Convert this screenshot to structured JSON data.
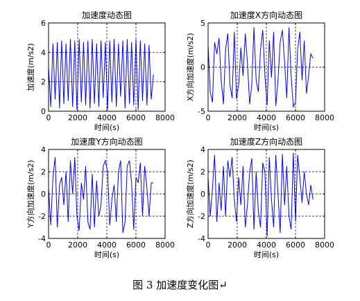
{
  "caption": "图 3  加速度变化图↵",
  "colors": {
    "series": "#0000ff",
    "axes": "#000000",
    "grid": "#000000"
  },
  "chart_data": [
    {
      "type": "line",
      "title": "加速度动态图",
      "xlabel": "时间(s)",
      "ylabel": "加速度(m/s2)",
      "xlim": [
        0,
        8000
      ],
      "ylim": [
        0,
        6
      ],
      "xticks": [
        0,
        2000,
        4000,
        6000,
        8000
      ],
      "yticks": [
        0,
        2,
        4,
        6
      ],
      "grid_x": [
        2000,
        4000,
        6000
      ],
      "grid_y": [
        2,
        4
      ],
      "series": [
        {
          "x": [
            0,
            150,
            300,
            450,
            600,
            750,
            900,
            1050,
            1200,
            1350,
            1500,
            1650,
            1800,
            1950,
            2100,
            2250,
            2400,
            2550,
            2700,
            2850,
            3000,
            3150,
            3300,
            3450,
            3600,
            3750,
            3900,
            4050,
            4200,
            4350,
            4500,
            4650,
            4800,
            4950,
            5100,
            5250,
            5400,
            5550,
            5700,
            5850,
            6000,
            6150,
            6300,
            6450,
            6600,
            6750,
            6900,
            7050,
            7200
          ],
          "y": [
            3.0,
            0.3,
            4.6,
            0.8,
            4.7,
            0.2,
            4.8,
            0.5,
            4.6,
            0.7,
            4.9,
            0.3,
            4.8,
            0.1,
            4.9,
            0.6,
            4.7,
            0.4,
            4.8,
            0.2,
            4.9,
            0.5,
            4.6,
            0.3,
            4.8,
            0.9,
            4.7,
            0.1,
            4.8,
            0.6,
            4.9,
            0.3,
            4.6,
            1.0,
            4.8,
            0.2,
            4.9,
            0.5,
            4.7,
            0.4,
            4.9,
            0.1,
            4.8,
            0.7,
            4.6,
            0.4,
            4.5,
            0.8,
            2.5
          ]
        }
      ]
    },
    {
      "type": "line",
      "title": "加速度X方向动态图",
      "xlabel": "时间(s)",
      "ylabel": "X方向加速度(m/s2)",
      "xlim": [
        0,
        8000
      ],
      "ylim": [
        -5,
        5
      ],
      "xticks": [
        0,
        2000,
        4000,
        6000,
        8000
      ],
      "yticks": [
        -5,
        0,
        5
      ],
      "grid_x": [
        2000,
        4000,
        6000
      ],
      "grid_y": [
        0
      ],
      "series": [
        {
          "x": [
            0,
            150,
            300,
            450,
            600,
            750,
            900,
            1050,
            1200,
            1350,
            1500,
            1650,
            1800,
            1950,
            2100,
            2250,
            2400,
            2550,
            2700,
            2850,
            3000,
            3150,
            3300,
            3450,
            3600,
            3750,
            3900,
            4050,
            4200,
            4350,
            4500,
            4650,
            4800,
            4950,
            5100,
            5250,
            5400,
            5550,
            5700,
            5850,
            6000,
            6150,
            6300,
            6450,
            6600,
            6750,
            6900,
            7050,
            7200
          ],
          "y": [
            2.5,
            -2.8,
            -4.0,
            2.8,
            1.5,
            3.3,
            -1.5,
            -4.2,
            2.0,
            3.8,
            -2.0,
            -3.5,
            4.0,
            -3.6,
            -2.0,
            2.2,
            -1.0,
            3.8,
            0.5,
            -4.2,
            -2.0,
            4.5,
            -1.5,
            -2.8,
            2.0,
            4.2,
            -1.0,
            -4.3,
            3.0,
            -1.2,
            4.0,
            -4.4,
            -1.5,
            2.8,
            4.2,
            0.5,
            -3.5,
            4.5,
            -1.0,
            -4.5,
            -4.0,
            2.0,
            4.0,
            -1.5,
            3.0,
            -3.0,
            -1.0,
            1.5,
            1.0
          ]
        }
      ]
    },
    {
      "type": "line",
      "title": "加速度Y方向动态图",
      "xlabel": "时间(s)",
      "ylabel": "Y方向加速度(m/s2)",
      "xlim": [
        0,
        8000
      ],
      "ylim": [
        -4,
        4
      ],
      "xticks": [
        0,
        2000,
        4000,
        6000,
        8000
      ],
      "yticks": [
        -4,
        -2,
        0,
        2,
        4
      ],
      "grid_x": [
        2000,
        4000,
        6000
      ],
      "grid_y": [
        -2,
        0,
        2
      ],
      "series": [
        {
          "x": [
            0,
            150,
            300,
            450,
            600,
            750,
            900,
            1050,
            1200,
            1350,
            1500,
            1650,
            1800,
            1950,
            2100,
            2250,
            2400,
            2550,
            2700,
            2850,
            3000,
            3150,
            3300,
            3450,
            3600,
            3750,
            3900,
            4050,
            4200,
            4350,
            4500,
            4650,
            4800,
            4950,
            5100,
            5250,
            5400,
            5550,
            5700,
            5850,
            6000,
            6150,
            6300,
            6450,
            6600,
            6750,
            6900,
            7050,
            7200
          ],
          "y": [
            0.5,
            -2.8,
            1.5,
            3.3,
            -3.0,
            0.8,
            1.5,
            -1.0,
            2.0,
            -2.5,
            3.0,
            0.0,
            3.3,
            -2.0,
            -3.3,
            1.0,
            -0.5,
            2.5,
            -2.5,
            -3.2,
            1.8,
            -3.0,
            1.2,
            -2.0,
            -1.0,
            2.5,
            3.0,
            2.0,
            -2.8,
            -0.5,
            0.8,
            -2.5,
            2.0,
            3.0,
            -3.5,
            -2.5,
            2.5,
            3.0,
            1.0,
            -3.2,
            1.5,
            1.0,
            2.8,
            -2.0,
            2.5,
            0.5,
            -2.0,
            1.0,
            1.0
          ]
        }
      ]
    },
    {
      "type": "line",
      "title": "加速度Z方向动态图",
      "xlabel": "时间(s)",
      "ylabel": "Z方向加速度(m/s2)",
      "xlim": [
        0,
        8000
      ],
      "ylim": [
        -4,
        4
      ],
      "xticks": [
        0,
        2000,
        4000,
        6000,
        8000
      ],
      "yticks": [
        -4,
        -2,
        0,
        2,
        4
      ],
      "grid_x": [
        2000,
        4000,
        6000
      ],
      "grid_y": [
        -2,
        0,
        2
      ],
      "series": [
        {
          "x": [
            0,
            150,
            300,
            450,
            600,
            750,
            900,
            1050,
            1200,
            1350,
            1500,
            1650,
            1800,
            1950,
            2100,
            2250,
            2400,
            2550,
            2700,
            2850,
            3000,
            3150,
            3300,
            3450,
            3600,
            3750,
            3900,
            4050,
            4200,
            4350,
            4500,
            4650,
            4800,
            4950,
            5100,
            5250,
            5400,
            5550,
            5700,
            5850,
            6000,
            6150,
            6300,
            6450,
            6600,
            6750,
            6900,
            7050,
            7200
          ],
          "y": [
            1.5,
            -2.0,
            0.5,
            3.5,
            -2.5,
            1.0,
            -1.5,
            2.5,
            -2.0,
            3.0,
            1.5,
            3.3,
            -0.5,
            -2.5,
            1.5,
            -1.0,
            2.5,
            -3.0,
            -1.0,
            2.0,
            3.2,
            -3.2,
            2.0,
            -1.5,
            -3.0,
            2.8,
            2.0,
            -3.8,
            3.3,
            -0.5,
            -3.0,
            3.5,
            0.0,
            -3.5,
            3.6,
            -1.0,
            2.5,
            -2.0,
            -3.2,
            3.7,
            -2.5,
            3.5,
            1.5,
            -0.8,
            2.0,
            0.0,
            -1.0,
            0.8,
            -0.5
          ]
        }
      ]
    }
  ]
}
